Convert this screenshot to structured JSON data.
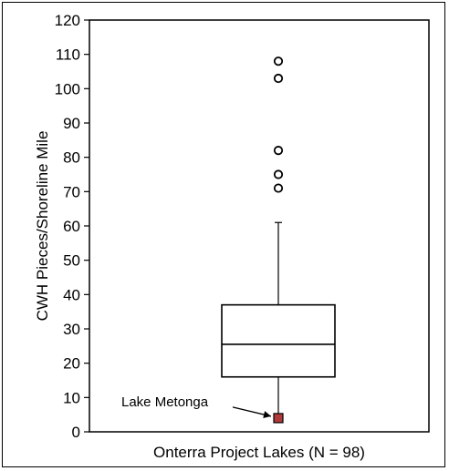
{
  "chart_data": {
    "type": "box",
    "xlabel": "Onterra Project Lakes (N = 98)",
    "ylabel": "CWH Pieces/Shoreline Mile",
    "ylim": [
      0,
      120
    ],
    "yticks": [
      0,
      10,
      20,
      30,
      40,
      50,
      60,
      70,
      80,
      90,
      100,
      110,
      120
    ],
    "box": {
      "whisker_low": 3,
      "q1": 16,
      "median": 25.5,
      "q3": 37,
      "whisker_high": 61
    },
    "outliers": [
      71,
      75,
      82,
      103,
      108
    ],
    "highlight": {
      "label": "Lake Metonga",
      "value": 4,
      "color": "#b03a3a"
    },
    "grid": false,
    "legend": "none"
  }
}
